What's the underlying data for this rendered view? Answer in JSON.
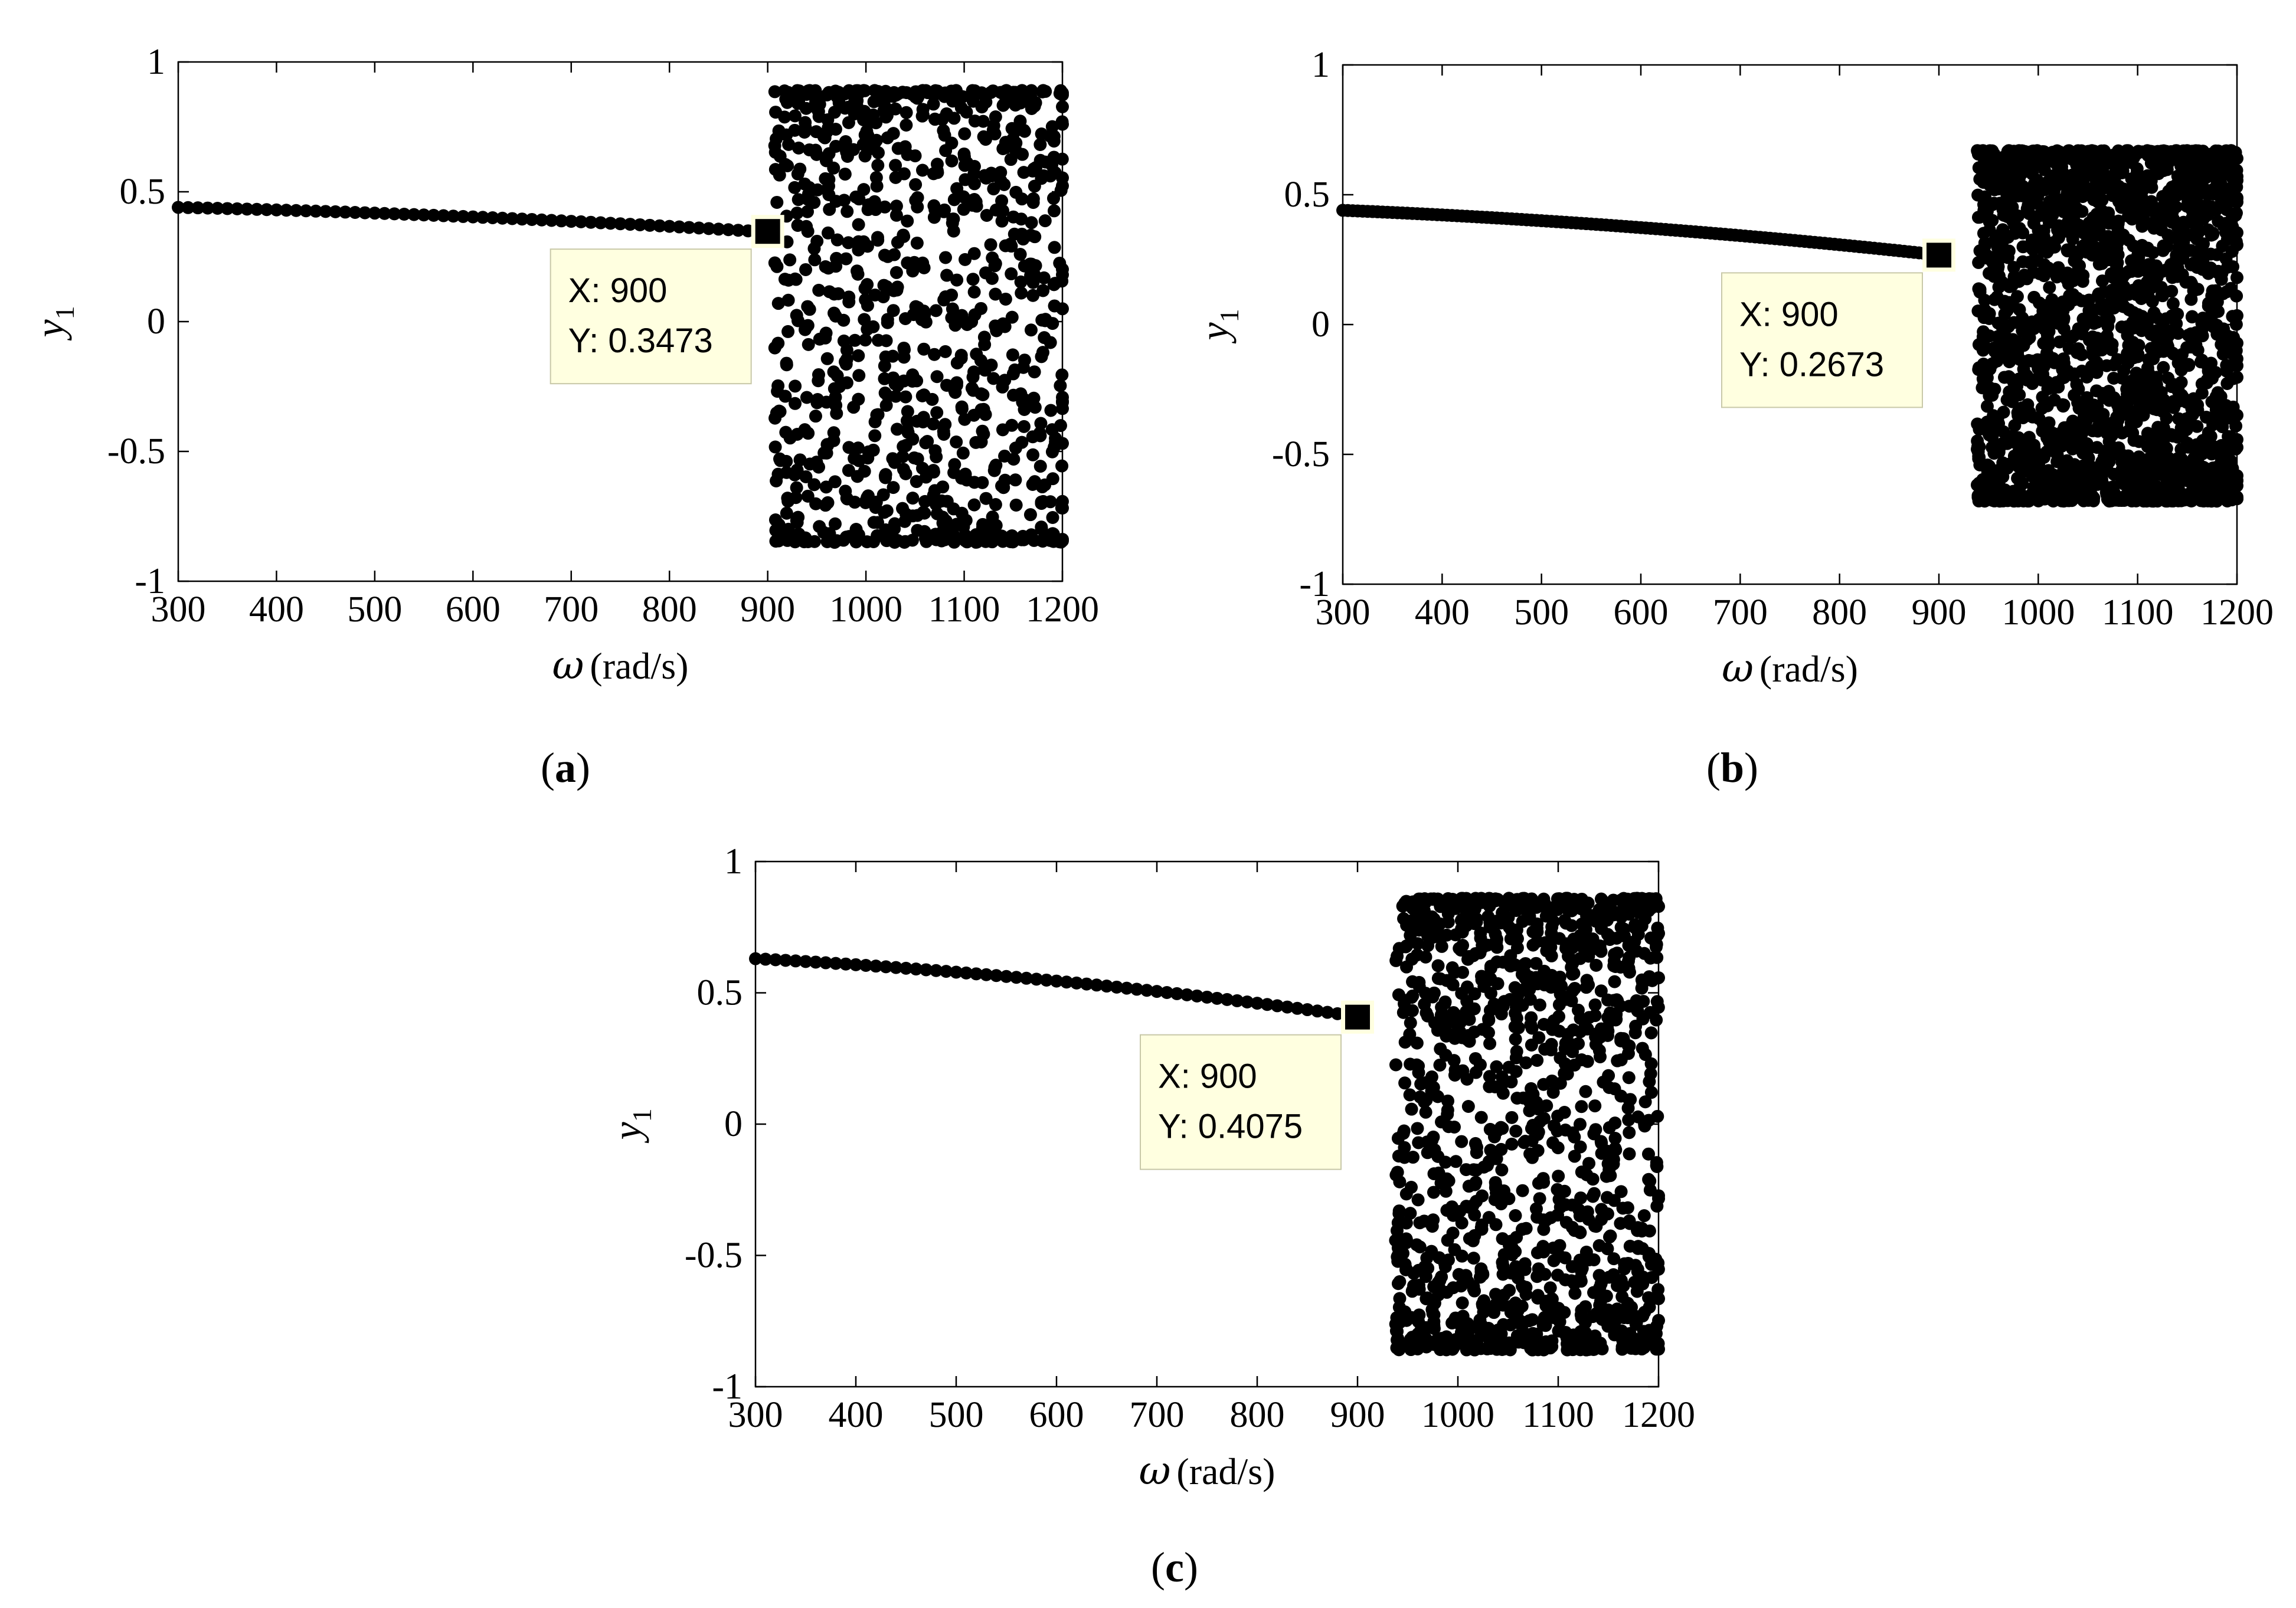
{
  "colors": {
    "marker": "#000000",
    "datatip_fill": "#ffffe0",
    "datatip_border": "#c8c8a8",
    "axes": "#000000"
  },
  "chart_data": [
    {
      "type": "scatter",
      "panel": "a",
      "xlabel_symbol": "ω",
      "xlabel_units": "(rad/s)",
      "ylabel_symbol": "y",
      "ylabel_subscript": "1",
      "xlim": [
        300,
        1200
      ],
      "ylim": [
        -1,
        1
      ],
      "xticks": [
        "300",
        "400",
        "500",
        "600",
        "700",
        "800",
        "900",
        "1000",
        "1100",
        "1200"
      ],
      "yticks": [
        "1",
        "0.5",
        "0",
        "-0.5",
        "-1"
      ],
      "trend": {
        "x_start": 300,
        "y_start": 0.44,
        "x_end": 895,
        "y_end": 0.345,
        "x_step": 10
      },
      "chaotic": {
        "x_start": 910,
        "x_end": 1200,
        "x_step": 10,
        "y_min": -0.85,
        "y_max": 0.89,
        "points_per_x": 32,
        "seed": 11
      },
      "datatip": {
        "x": 900,
        "y": 0.3473,
        "x_label": "X: 900",
        "y_label": "Y: 0.3473"
      },
      "caption_open": "(",
      "caption_letter": "a",
      "caption_close": ")"
    },
    {
      "type": "scatter",
      "panel": "b",
      "xlabel_symbol": "ω",
      "xlabel_units": "(rad/s)",
      "ylabel_symbol": "y",
      "ylabel_subscript": "1",
      "xlim": [
        300,
        1200
      ],
      "ylim": [
        -1,
        1
      ],
      "xticks": [
        "300",
        "400",
        "500",
        "600",
        "700",
        "800",
        "900",
        "1000",
        "1100",
        "1200"
      ],
      "yticks": [
        "1",
        "0.5",
        "0",
        "-0.5",
        "-1"
      ],
      "trend": {
        "x_start": 300,
        "y_start": 0.44,
        "x_end": 895,
        "y_end": 0.27,
        "x_step": 5
      },
      "chaotic": {
        "x_start": 940,
        "x_end": 1200,
        "x_step": 5,
        "y_min": -0.68,
        "y_max": 0.67,
        "points_per_x": 38,
        "seed": 23
      },
      "datatip": {
        "x": 900,
        "y": 0.2673,
        "x_label": "X: 900",
        "y_label": "Y: 0.2673"
      },
      "caption_open": "(",
      "caption_letter": "b",
      "caption_close": ")"
    },
    {
      "type": "scatter",
      "panel": "c",
      "xlabel_symbol": "ω",
      "xlabel_units": "(rad/s)",
      "ylabel_symbol": "y",
      "ylabel_subscript": "1",
      "xlim": [
        300,
        1200
      ],
      "ylim": [
        -1,
        1
      ],
      "xticks": [
        "300",
        "400",
        "500",
        "600",
        "700",
        "800",
        "900",
        "1000",
        "1100",
        "1200"
      ],
      "yticks": [
        "1",
        "0.5",
        "0",
        "-0.5",
        "-1"
      ],
      "trend": {
        "x_start": 300,
        "y_start": 0.63,
        "x_end": 895,
        "y_end": 0.41,
        "x_step": 10
      },
      "chaotic": {
        "x_start": 940,
        "x_end": 1200,
        "x_step": 7,
        "y_min": -0.86,
        "y_max": 0.86,
        "points_per_x": 34,
        "seed": 37
      },
      "datatip": {
        "x": 900,
        "y": 0.4075,
        "x_label": "X: 900",
        "y_label": "Y: 0.4075"
      },
      "caption_open": "(",
      "caption_letter": "c",
      "caption_close": ")"
    }
  ]
}
